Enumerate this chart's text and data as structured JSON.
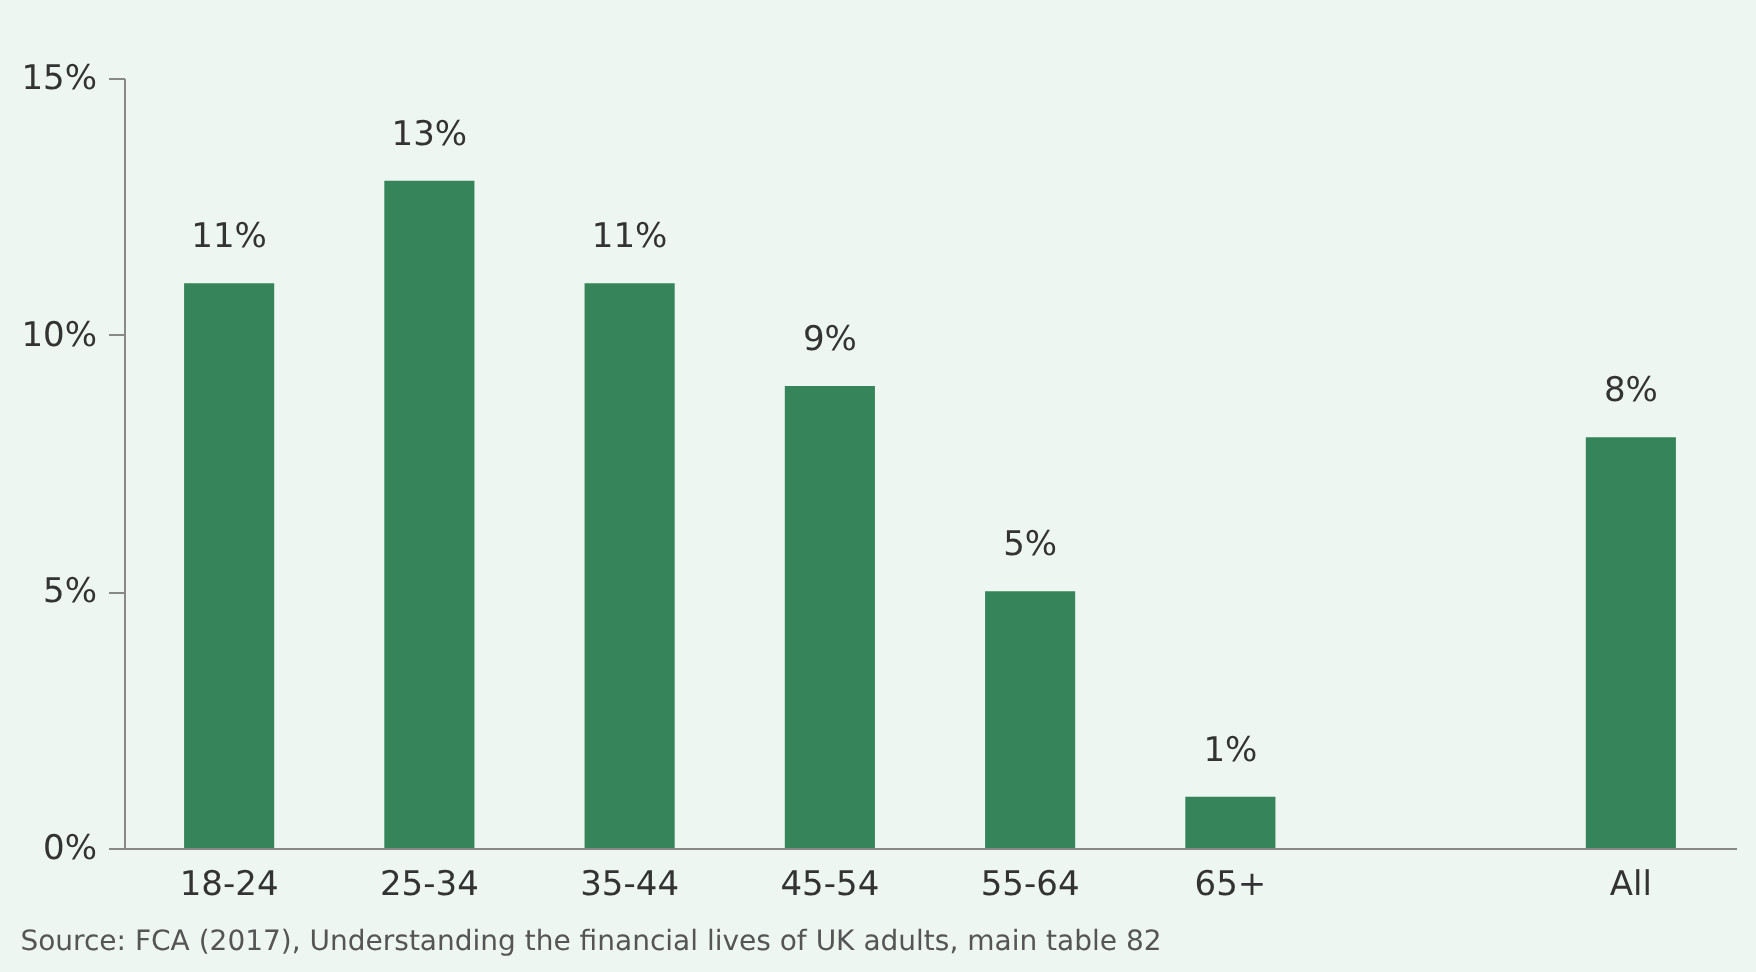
{
  "chart_data": {
    "type": "bar",
    "categories": [
      "18-24",
      "25-34",
      "35-44",
      "45-54",
      "55-64",
      "65+",
      null,
      "All"
    ],
    "values": [
      11,
      13,
      11,
      9,
      5,
      1,
      null,
      8
    ],
    "value_labels": [
      "11%",
      "13%",
      "11%",
      "9%",
      "5%",
      "1%",
      null,
      "8%"
    ],
    "color": "#35845a",
    "ylim": [
      0,
      15
    ],
    "yticks": [
      {
        "value": 0,
        "label": "0%"
      },
      {
        "value": 5,
        "label": "5%"
      },
      {
        "value": 10,
        "label": "10%"
      },
      {
        "value": 15,
        "label": "15%"
      }
    ],
    "grid": false,
    "annotations": [
      "Source: FCA (2017), Understanding  the financial lives of UK adults, main table 82"
    ]
  }
}
